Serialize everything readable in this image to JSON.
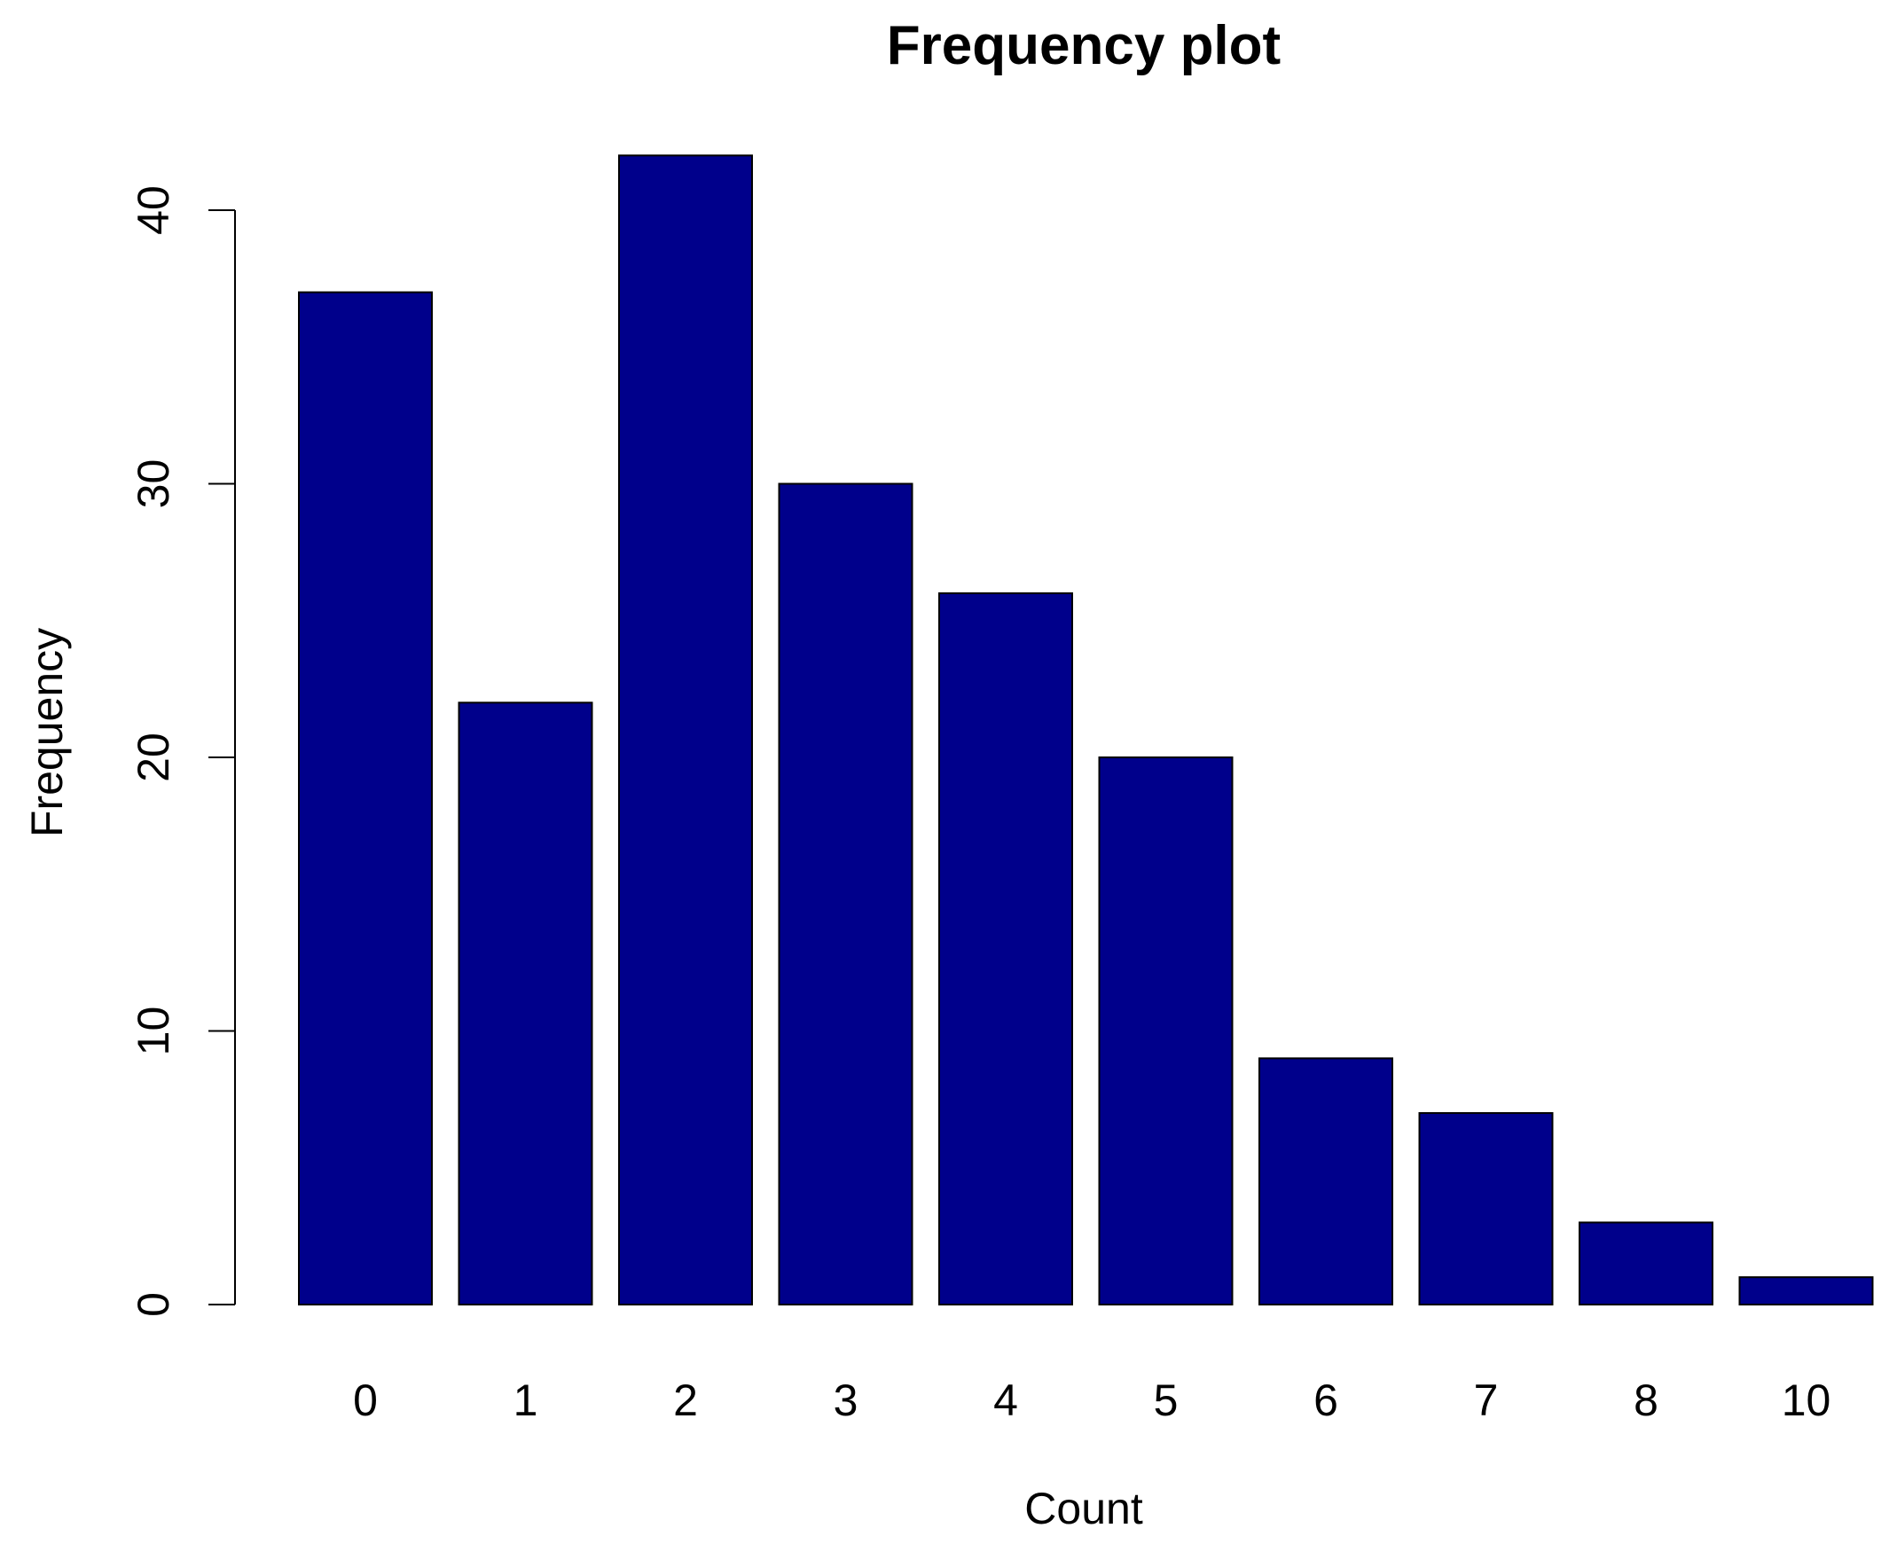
{
  "chart_data": {
    "type": "bar",
    "title": "Frequency plot",
    "xlabel": "Count",
    "ylabel": "Frequency",
    "categories": [
      "0",
      "1",
      "2",
      "3",
      "4",
      "5",
      "6",
      "7",
      "8",
      "10"
    ],
    "values": [
      37,
      22,
      42,
      30,
      26,
      20,
      9,
      7,
      3,
      1
    ],
    "ylim": [
      0,
      43
    ],
    "yticks": [
      0,
      10,
      20,
      30,
      40
    ],
    "ytick_labels": [
      "0",
      "10",
      "20",
      "30",
      "40"
    ],
    "bar_color": "#00008B",
    "grid": false,
    "legend": "none"
  }
}
